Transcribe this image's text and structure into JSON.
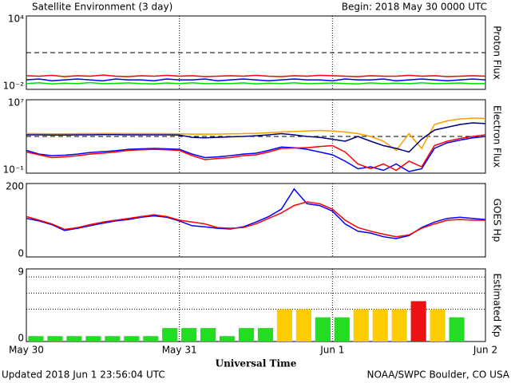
{
  "header": {
    "title": "Satellite Environment (3 day)",
    "begin": "Begin:  2018 May 30 0000 UTC"
  },
  "footer": {
    "updated": "Updated 2018 Jun  1 23:56:04 UTC",
    "credit": "NOAA/SWPC Boulder, CO USA"
  },
  "chart_data": [
    {
      "type": "line",
      "ylabel": "Proton Flux",
      "log": true,
      "ylim": [
        0.01,
        10000
      ],
      "yticks": [
        {
          "value": 10000,
          "label": "10⁴"
        },
        {
          "value": 0.01,
          "label": "10⁻²"
        }
      ],
      "threshold": 10,
      "xlim": [
        0,
        72
      ],
      "xticks": [
        0,
        24,
        48,
        72
      ],
      "x": [
        0,
        2,
        4,
        6,
        8,
        10,
        12,
        14,
        16,
        18,
        20,
        22,
        24,
        26,
        28,
        30,
        32,
        34,
        36,
        38,
        40,
        42,
        44,
        46,
        48,
        50,
        52,
        54,
        56,
        58,
        60,
        62,
        64,
        66,
        68,
        70,
        72
      ],
      "series": [
        {
          "color": "#ff0000",
          "values": [
            0.13,
            0.12,
            0.14,
            0.11,
            0.13,
            0.12,
            0.15,
            0.12,
            0.11,
            0.13,
            0.12,
            0.14,
            0.12,
            0.13,
            0.11,
            0.12,
            0.13,
            0.12,
            0.14,
            0.12,
            0.11,
            0.13,
            0.12,
            0.14,
            0.13,
            0.12,
            0.11,
            0.13,
            0.12,
            0.12,
            0.14,
            0.12,
            0.13,
            0.11,
            0.12,
            0.13,
            0.12
          ]
        },
        {
          "color": "#0000ff",
          "values": [
            0.06,
            0.07,
            0.05,
            0.06,
            0.07,
            0.06,
            0.05,
            0.07,
            0.06,
            0.06,
            0.05,
            0.07,
            0.06,
            0.06,
            0.07,
            0.05,
            0.06,
            0.07,
            0.06,
            0.05,
            0.06,
            0.07,
            0.06,
            0.06,
            0.05,
            0.07,
            0.06,
            0.06,
            0.07,
            0.05,
            0.06,
            0.07,
            0.06,
            0.05,
            0.06,
            0.07,
            0.06
          ]
        },
        {
          "color": "#00dd00",
          "values": [
            0.03,
            0.035,
            0.028,
            0.032,
            0.03,
            0.036,
            0.029,
            0.031,
            0.034,
            0.03,
            0.028,
            0.033,
            0.03,
            0.035,
            0.029,
            0.031,
            0.03,
            0.034,
            0.028,
            0.032,
            0.03,
            0.035,
            0.029,
            0.031,
            0.033,
            0.03,
            0.028,
            0.034,
            0.03,
            0.032,
            0.029,
            0.035,
            0.03,
            0.031,
            0.033,
            0.029,
            0.03
          ]
        }
      ]
    },
    {
      "type": "line",
      "ylabel": "Electron Flux",
      "log": true,
      "ylim": [
        0.1,
        10000000
      ],
      "yticks": [
        {
          "value": 10000000,
          "label": "10⁷"
        },
        {
          "value": 0.1,
          "label": "10⁻¹"
        }
      ],
      "threshold": 1000,
      "xlim": [
        0,
        72
      ],
      "xticks": [
        0,
        24,
        48,
        72
      ],
      "x": [
        0,
        2,
        4,
        6,
        8,
        10,
        12,
        14,
        16,
        18,
        20,
        22,
        24,
        26,
        28,
        30,
        32,
        34,
        36,
        38,
        40,
        42,
        44,
        46,
        48,
        50,
        52,
        54,
        56,
        58,
        60,
        62,
        64,
        66,
        68,
        70,
        72
      ],
      "series": [
        {
          "color": "#ff9900",
          "values": [
            2000,
            2000,
            1900,
            1900,
            2000,
            2000,
            2100,
            2100,
            2000,
            2000,
            2000,
            2000,
            1900,
            1800,
            1800,
            1800,
            1900,
            2000,
            2200,
            2500,
            3000,
            3500,
            4000,
            4500,
            4000,
            3000,
            2000,
            1000,
            300,
            30,
            2000,
            50,
            20000,
            50000,
            80000,
            100000,
            90000
          ]
        },
        {
          "color": "#000080",
          "values": [
            1500,
            1500,
            1400,
            1400,
            1500,
            1500,
            1600,
            1600,
            1500,
            1500,
            1500,
            1500,
            1400,
            800,
            700,
            800,
            900,
            1000,
            1200,
            1500,
            2000,
            1500,
            1000,
            800,
            500,
            300,
            1000,
            300,
            100,
            50,
            20,
            500,
            5000,
            10000,
            20000,
            30000,
            25000
          ]
        },
        {
          "color": "#0000ff",
          "values": [
            30,
            12,
            8,
            9,
            12,
            18,
            22,
            28,
            40,
            45,
            50,
            45,
            40,
            12,
            5,
            6,
            8,
            12,
            15,
            30,
            70,
            60,
            40,
            20,
            10,
            2,
            0.3,
            0.5,
            0.2,
            1,
            0.15,
            0.3,
            50,
            200,
            400,
            700,
            1000
          ]
        },
        {
          "color": "#ff0000",
          "values": [
            20,
            10,
            5,
            6,
            8,
            12,
            15,
            20,
            30,
            35,
            40,
            35,
            30,
            8,
            3,
            4,
            5,
            8,
            10,
            20,
            50,
            55,
            60,
            80,
            100,
            20,
            1,
            0.3,
            1,
            0.2,
            2,
            0.5,
            100,
            300,
            600,
            1000,
            1500
          ]
        }
      ]
    },
    {
      "type": "line",
      "ylabel": "GOES Hp",
      "ylim": [
        0,
        200
      ],
      "yticks": [
        200,
        0
      ],
      "xlim": [
        0,
        72
      ],
      "xticks": [
        0,
        24,
        48,
        72
      ],
      "x": [
        0,
        2,
        4,
        6,
        8,
        10,
        12,
        14,
        16,
        18,
        20,
        22,
        24,
        26,
        28,
        30,
        32,
        34,
        36,
        38,
        40,
        42,
        44,
        46,
        48,
        50,
        52,
        54,
        56,
        58,
        60,
        62,
        64,
        66,
        68,
        70,
        72
      ],
      "series": [
        {
          "color": "#0000ff",
          "values": [
            105,
            98,
            88,
            72,
            78,
            85,
            92,
            98,
            102,
            108,
            112,
            108,
            98,
            85,
            82,
            78,
            76,
            82,
            95,
            110,
            130,
            185,
            145,
            140,
            125,
            90,
            70,
            65,
            55,
            50,
            58,
            80,
            95,
            105,
            108,
            105,
            102
          ]
        },
        {
          "color": "#ff0000",
          "values": [
            110,
            100,
            90,
            75,
            80,
            88,
            95,
            100,
            105,
            110,
            115,
            110,
            100,
            95,
            90,
            80,
            78,
            80,
            90,
            105,
            120,
            140,
            150,
            145,
            130,
            100,
            80,
            70,
            62,
            55,
            60,
            78,
            90,
            100,
            102,
            100,
            100
          ]
        }
      ]
    },
    {
      "type": "bar",
      "ylabel": "Estimated Kp",
      "ylim": [
        0,
        9
      ],
      "yticks": [
        9,
        0
      ],
      "grid": [
        4,
        6,
        8
      ],
      "xlabel": "Universal Time",
      "xlim": [
        0,
        72
      ],
      "xticks": [
        {
          "value": 0,
          "label": "May 30"
        },
        {
          "value": 24,
          "label": "May 31"
        },
        {
          "value": 48,
          "label": "Jun 1"
        },
        {
          "value": 72,
          "label": "Jun 2"
        }
      ],
      "x": [
        0,
        3,
        6,
        9,
        12,
        15,
        18,
        21,
        24,
        27,
        30,
        33,
        36,
        39,
        42,
        45,
        48,
        51,
        54,
        57,
        60,
        63,
        66
      ],
      "values": [
        0.67,
        0.67,
        0.67,
        0.67,
        0.67,
        0.67,
        0.67,
        1.67,
        1.67,
        1.67,
        0.67,
        1.67,
        1.67,
        4,
        4,
        3,
        3,
        4,
        4,
        4,
        5,
        4,
        3
      ],
      "colors": [
        "#22dd22",
        "#22dd22",
        "#22dd22",
        "#22dd22",
        "#22dd22",
        "#22dd22",
        "#22dd22",
        "#22dd22",
        "#22dd22",
        "#22dd22",
        "#22dd22",
        "#22dd22",
        "#22dd22",
        "#ffcc00",
        "#ffcc00",
        "#22dd22",
        "#22dd22",
        "#ffcc00",
        "#ffcc00",
        "#ffcc00",
        "#ee1111",
        "#ffcc00",
        "#22dd22"
      ]
    }
  ]
}
